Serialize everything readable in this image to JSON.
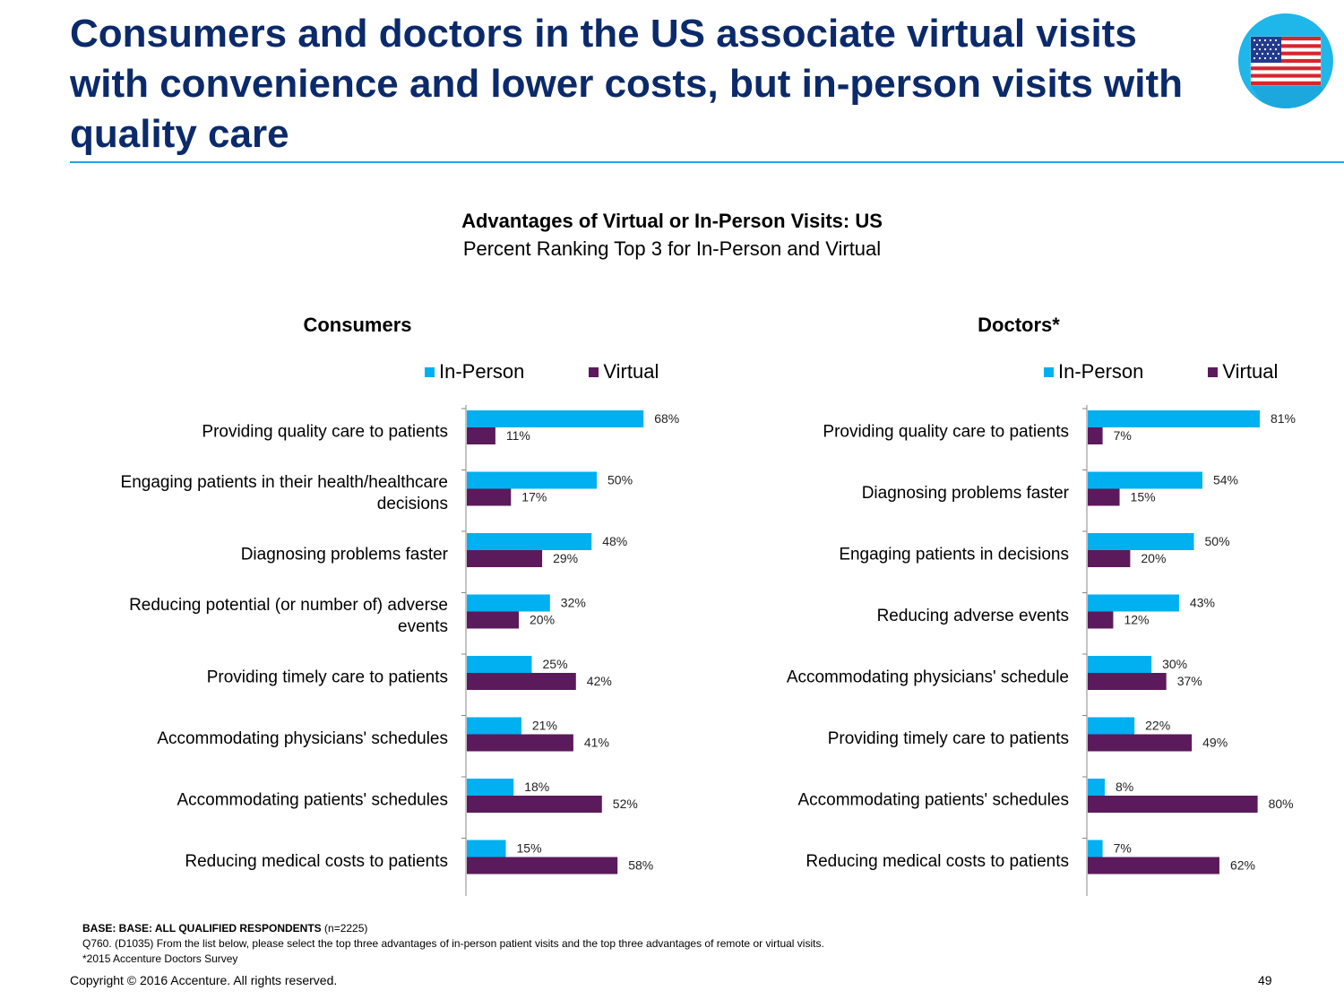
{
  "slide": {
    "title": "Consumers and doctors in the US associate virtual visits with convenience and lower costs, but in-person visits with quality care",
    "footnote_base_label": "BASE: BASE: ALL QUALIFIED RESPONDENTS",
    "footnote_base_n": "(n=2225)",
    "footnote_question": "Q760. (D1035)  From the list below, please select the top three advantages of in-person patient visits and the top three advantages of remote or virtual visits.",
    "footnote_source": "*2015 Accenture Doctors Survey",
    "copyright": "Copyright © 2016 Accenture. All rights reserved.",
    "page_number": "49",
    "flag_icon": "us-flag-icon"
  },
  "colors": {
    "in_person": "#00b0f0",
    "virtual": "#5b1a5b",
    "title": "#0b2a6b",
    "accent": "#1ea7e1"
  },
  "chart_header": {
    "title": "Advantages of Virtual or In-Person Visits: US",
    "subtitle": "Percent Ranking Top 3 for In-Person and Virtual"
  },
  "chart_data": [
    {
      "type": "bar",
      "orientation": "horizontal",
      "title": "Consumers",
      "legend_position": "top",
      "grid": false,
      "unit": "%",
      "categories": [
        [
          "Providing quality care to patients"
        ],
        [
          "Engaging patients in their health/healthcare",
          "decisions"
        ],
        [
          "Diagnosing problems faster"
        ],
        [
          "Reducing potential (or number of) adverse",
          "events"
        ],
        [
          "Providing timely care to patients"
        ],
        [
          "Accommodating physicians' schedules"
        ],
        [
          "Accommodating patients' schedules"
        ],
        [
          "Reducing medical costs to patients"
        ]
      ],
      "series": [
        {
          "name": "In-Person",
          "values": [
            68,
            50,
            48,
            32,
            25,
            21,
            18,
            15
          ]
        },
        {
          "name": "Virtual",
          "values": [
            11,
            17,
            29,
            20,
            42,
            41,
            52,
            58
          ]
        }
      ]
    },
    {
      "type": "bar",
      "orientation": "horizontal",
      "title": "Doctors*",
      "legend_position": "top",
      "grid": false,
      "unit": "%",
      "categories": [
        [
          "Providing quality care to patients"
        ],
        [
          "Diagnosing problems faster"
        ],
        [
          "Engaging patients in decisions"
        ],
        [
          "Reducing adverse events"
        ],
        [
          "Accommodating physicians' schedule"
        ],
        [
          "Providing timely care to patients"
        ],
        [
          "Accommodating patients' schedules"
        ],
        [
          "Reducing medical costs to patients"
        ]
      ],
      "series": [
        {
          "name": "In-Person",
          "values": [
            81,
            54,
            50,
            43,
            30,
            22,
            8,
            7
          ]
        },
        {
          "name": "Virtual",
          "values": [
            7,
            15,
            20,
            12,
            37,
            49,
            80,
            62
          ]
        }
      ]
    }
  ]
}
